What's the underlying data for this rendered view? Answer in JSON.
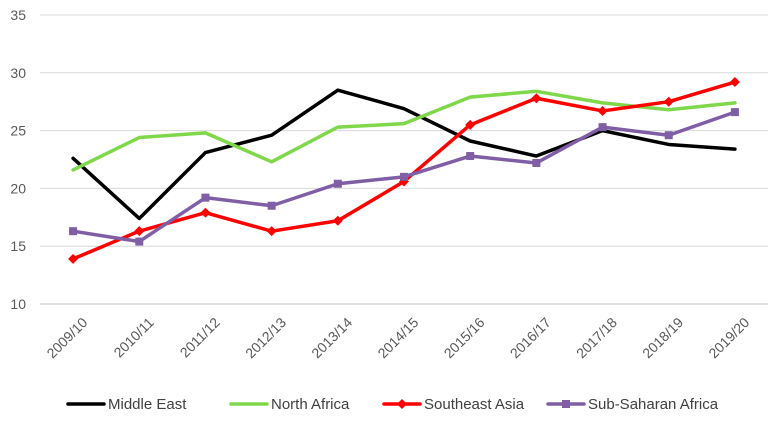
{
  "chart_data": {
    "type": "line",
    "categories": [
      "2009/10",
      "2010/11",
      "2011/12",
      "2012/13",
      "2013/14",
      "2014/15",
      "2015/16",
      "2016/17",
      "2017/18",
      "2018/19",
      "2019/20"
    ],
    "ylim": [
      10,
      35
    ],
    "yticks": [
      10,
      15,
      20,
      25,
      30,
      35
    ],
    "grid": "horizontal",
    "legend_position": "bottom",
    "series": [
      {
        "name": "Middle East",
        "color": "#000000",
        "marker": "none",
        "values": [
          22.6,
          17.4,
          23.1,
          24.6,
          28.5,
          26.9,
          24.1,
          22.8,
          25.0,
          23.8,
          23.4
        ]
      },
      {
        "name": "North Africa",
        "color": "#7fd74a",
        "marker": "none",
        "values": [
          21.6,
          24.4,
          24.8,
          22.3,
          25.3,
          25.6,
          27.9,
          28.4,
          27.4,
          26.8,
          27.4
        ]
      },
      {
        "name": "Southeast Asia",
        "color": "#ff0000",
        "marker": "diamond",
        "values": [
          13.9,
          16.3,
          17.9,
          16.3,
          17.2,
          20.6,
          25.5,
          27.8,
          26.7,
          27.5,
          29.2
        ]
      },
      {
        "name": "Sub-Saharan Africa",
        "color": "#7f5ea6",
        "marker": "square",
        "values": [
          16.3,
          15.4,
          19.2,
          18.5,
          20.4,
          21.0,
          22.8,
          22.2,
          25.3,
          24.6,
          26.6
        ]
      }
    ]
  }
}
